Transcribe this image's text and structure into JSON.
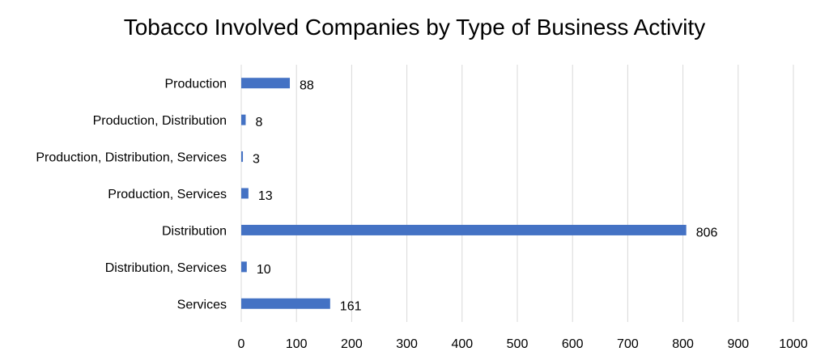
{
  "chart_data": {
    "type": "bar",
    "orientation": "horizontal",
    "title": "Tobacco Involved Companies by Type of Business Activity",
    "categories": [
      "Production",
      "Production, Distribution",
      "Production, Distribution, Services",
      "Production, Services",
      "Distribution",
      "Distribution, Services",
      "Services"
    ],
    "values": [
      88,
      8,
      3,
      13,
      806,
      10,
      161
    ],
    "xlim": [
      0,
      1000
    ],
    "xticks": [
      0,
      100,
      200,
      300,
      400,
      500,
      600,
      700,
      800,
      900,
      1000
    ],
    "xlabel": "",
    "ylabel": "",
    "grid": "vertical",
    "legend": "none",
    "bar_color": "#4472C4",
    "grid_color": "#d9d9d9"
  }
}
